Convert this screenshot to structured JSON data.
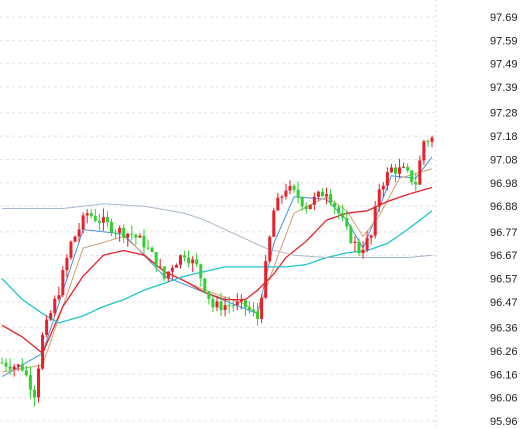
{
  "chart_data": {
    "type": "candlestick",
    "title": "",
    "xlabel": "",
    "ylabel": "",
    "ylim": [
      95.96,
      97.74
    ],
    "y_ticks": [
      "97.69",
      "97.59",
      "97.49",
      "97.39",
      "97.28",
      "97.18",
      "97.08",
      "96.98",
      "96.88",
      "96.77",
      "96.67",
      "96.57",
      "96.47",
      "96.36",
      "96.26",
      "96.16",
      "96.06",
      "95.96"
    ],
    "y_tick_values": [
      97.69,
      97.59,
      97.49,
      97.39,
      97.28,
      97.18,
      97.08,
      96.98,
      96.88,
      96.77,
      96.67,
      96.57,
      96.47,
      96.36,
      96.26,
      96.16,
      96.06,
      95.96
    ],
    "grid": "horizontal dashed",
    "colors": {
      "up": "#e8202a",
      "down": "#2ed12e",
      "ma_fast": "#4a90e2",
      "ma_mid": "#d2a070",
      "ma_red": "#e8202a",
      "ma_cyan": "#22c4c8",
      "ma_slow": "#a7b7cf",
      "grid": "#e4e4e4",
      "separator": "#dddddd"
    },
    "candle_count": 107,
    "close_path": [
      [
        0,
        96.21
      ],
      [
        5,
        96.19
      ],
      [
        8,
        96.08
      ],
      [
        10,
        96.32
      ],
      [
        14,
        96.52
      ],
      [
        17,
        96.72
      ],
      [
        21,
        96.85
      ],
      [
        25,
        96.81
      ],
      [
        28,
        96.78
      ],
      [
        32,
        96.76
      ],
      [
        35,
        96.72
      ],
      [
        38,
        96.64
      ],
      [
        40,
        96.57
      ],
      [
        42,
        96.63
      ],
      [
        45,
        96.68
      ],
      [
        48,
        96.62
      ],
      [
        52,
        96.45
      ],
      [
        57,
        96.46
      ],
      [
        60,
        96.45
      ],
      [
        63,
        96.4
      ],
      [
        65,
        96.62
      ],
      [
        67,
        96.86
      ],
      [
        70,
        96.96
      ],
      [
        73,
        96.92
      ],
      [
        75,
        96.88
      ],
      [
        80,
        96.95
      ],
      [
        83,
        96.85
      ],
      [
        85,
        96.77
      ],
      [
        88,
        96.69
      ],
      [
        91,
        96.75
      ],
      [
        93,
        96.96
      ],
      [
        96,
        97.04
      ],
      [
        99,
        97.03
      ],
      [
        102,
        96.98
      ],
      [
        104,
        97.16
      ],
      [
        106,
        97.17
      ]
    ],
    "series": [
      {
        "type": "line",
        "values": [
          [
            0,
            96.15
          ],
          [
            10,
            96.25
          ],
          [
            20,
            96.78
          ],
          [
            30,
            96.76
          ],
          [
            40,
            96.58
          ],
          [
            50,
            96.51
          ],
          [
            60,
            96.44
          ],
          [
            63,
            96.42
          ],
          [
            67,
            96.72
          ],
          [
            72,
            96.92
          ],
          [
            80,
            96.91
          ],
          [
            85,
            96.82
          ],
          [
            89,
            96.7
          ],
          [
            93,
            96.87
          ],
          [
            96,
            97.01
          ],
          [
            102,
            97.0
          ],
          [
            106,
            97.09
          ]
        ]
      },
      {
        "type": "line",
        "values": [
          [
            0,
            96.17
          ],
          [
            10,
            96.2
          ],
          [
            20,
            96.7
          ],
          [
            30,
            96.75
          ],
          [
            40,
            96.6
          ],
          [
            50,
            96.52
          ],
          [
            60,
            96.46
          ],
          [
            63,
            96.42
          ],
          [
            67,
            96.62
          ],
          [
            72,
            96.85
          ],
          [
            80,
            96.92
          ],
          [
            85,
            96.86
          ],
          [
            89,
            96.75
          ],
          [
            93,
            96.84
          ],
          [
            98,
            97.0
          ],
          [
            106,
            97.04
          ]
        ]
      },
      {
        "type": "line",
        "values": [
          [
            0,
            96.37
          ],
          [
            5,
            96.32
          ],
          [
            10,
            96.25
          ],
          [
            15,
            96.45
          ],
          [
            20,
            96.58
          ],
          [
            25,
            96.67
          ],
          [
            30,
            96.69
          ],
          [
            35,
            96.67
          ],
          [
            40,
            96.6
          ],
          [
            45,
            96.56
          ],
          [
            50,
            96.51
          ],
          [
            55,
            96.48
          ],
          [
            60,
            96.48
          ],
          [
            63,
            96.52
          ],
          [
            67,
            96.59
          ],
          [
            70,
            96.66
          ],
          [
            75,
            96.73
          ],
          [
            80,
            96.82
          ],
          [
            85,
            96.85
          ],
          [
            90,
            96.86
          ],
          [
            95,
            96.9
          ],
          [
            100,
            96.93
          ],
          [
            106,
            96.96
          ]
        ]
      },
      {
        "type": "line",
        "values": [
          [
            0,
            96.57
          ],
          [
            5,
            96.48
          ],
          [
            10,
            96.42
          ],
          [
            14,
            96.38
          ],
          [
            20,
            96.41
          ],
          [
            25,
            96.45
          ],
          [
            30,
            96.48
          ],
          [
            35,
            96.52
          ],
          [
            40,
            96.55
          ],
          [
            45,
            96.58
          ],
          [
            50,
            96.6
          ],
          [
            55,
            96.62
          ],
          [
            60,
            96.62
          ],
          [
            65,
            96.62
          ],
          [
            70,
            96.62
          ],
          [
            75,
            96.63
          ],
          [
            80,
            96.66
          ],
          [
            85,
            96.68
          ],
          [
            90,
            96.69
          ],
          [
            95,
            96.72
          ],
          [
            100,
            96.78
          ],
          [
            106,
            96.86
          ]
        ]
      },
      {
        "type": "line",
        "values": [
          [
            0,
            96.87
          ],
          [
            15,
            96.87
          ],
          [
            25,
            96.89
          ],
          [
            35,
            96.88
          ],
          [
            45,
            96.85
          ],
          [
            50,
            96.82
          ],
          [
            55,
            96.78
          ],
          [
            60,
            96.74
          ],
          [
            65,
            96.7
          ],
          [
            72,
            96.67
          ],
          [
            80,
            96.66
          ],
          [
            90,
            96.66
          ],
          [
            100,
            96.66
          ],
          [
            106,
            96.67
          ]
        ]
      }
    ]
  }
}
